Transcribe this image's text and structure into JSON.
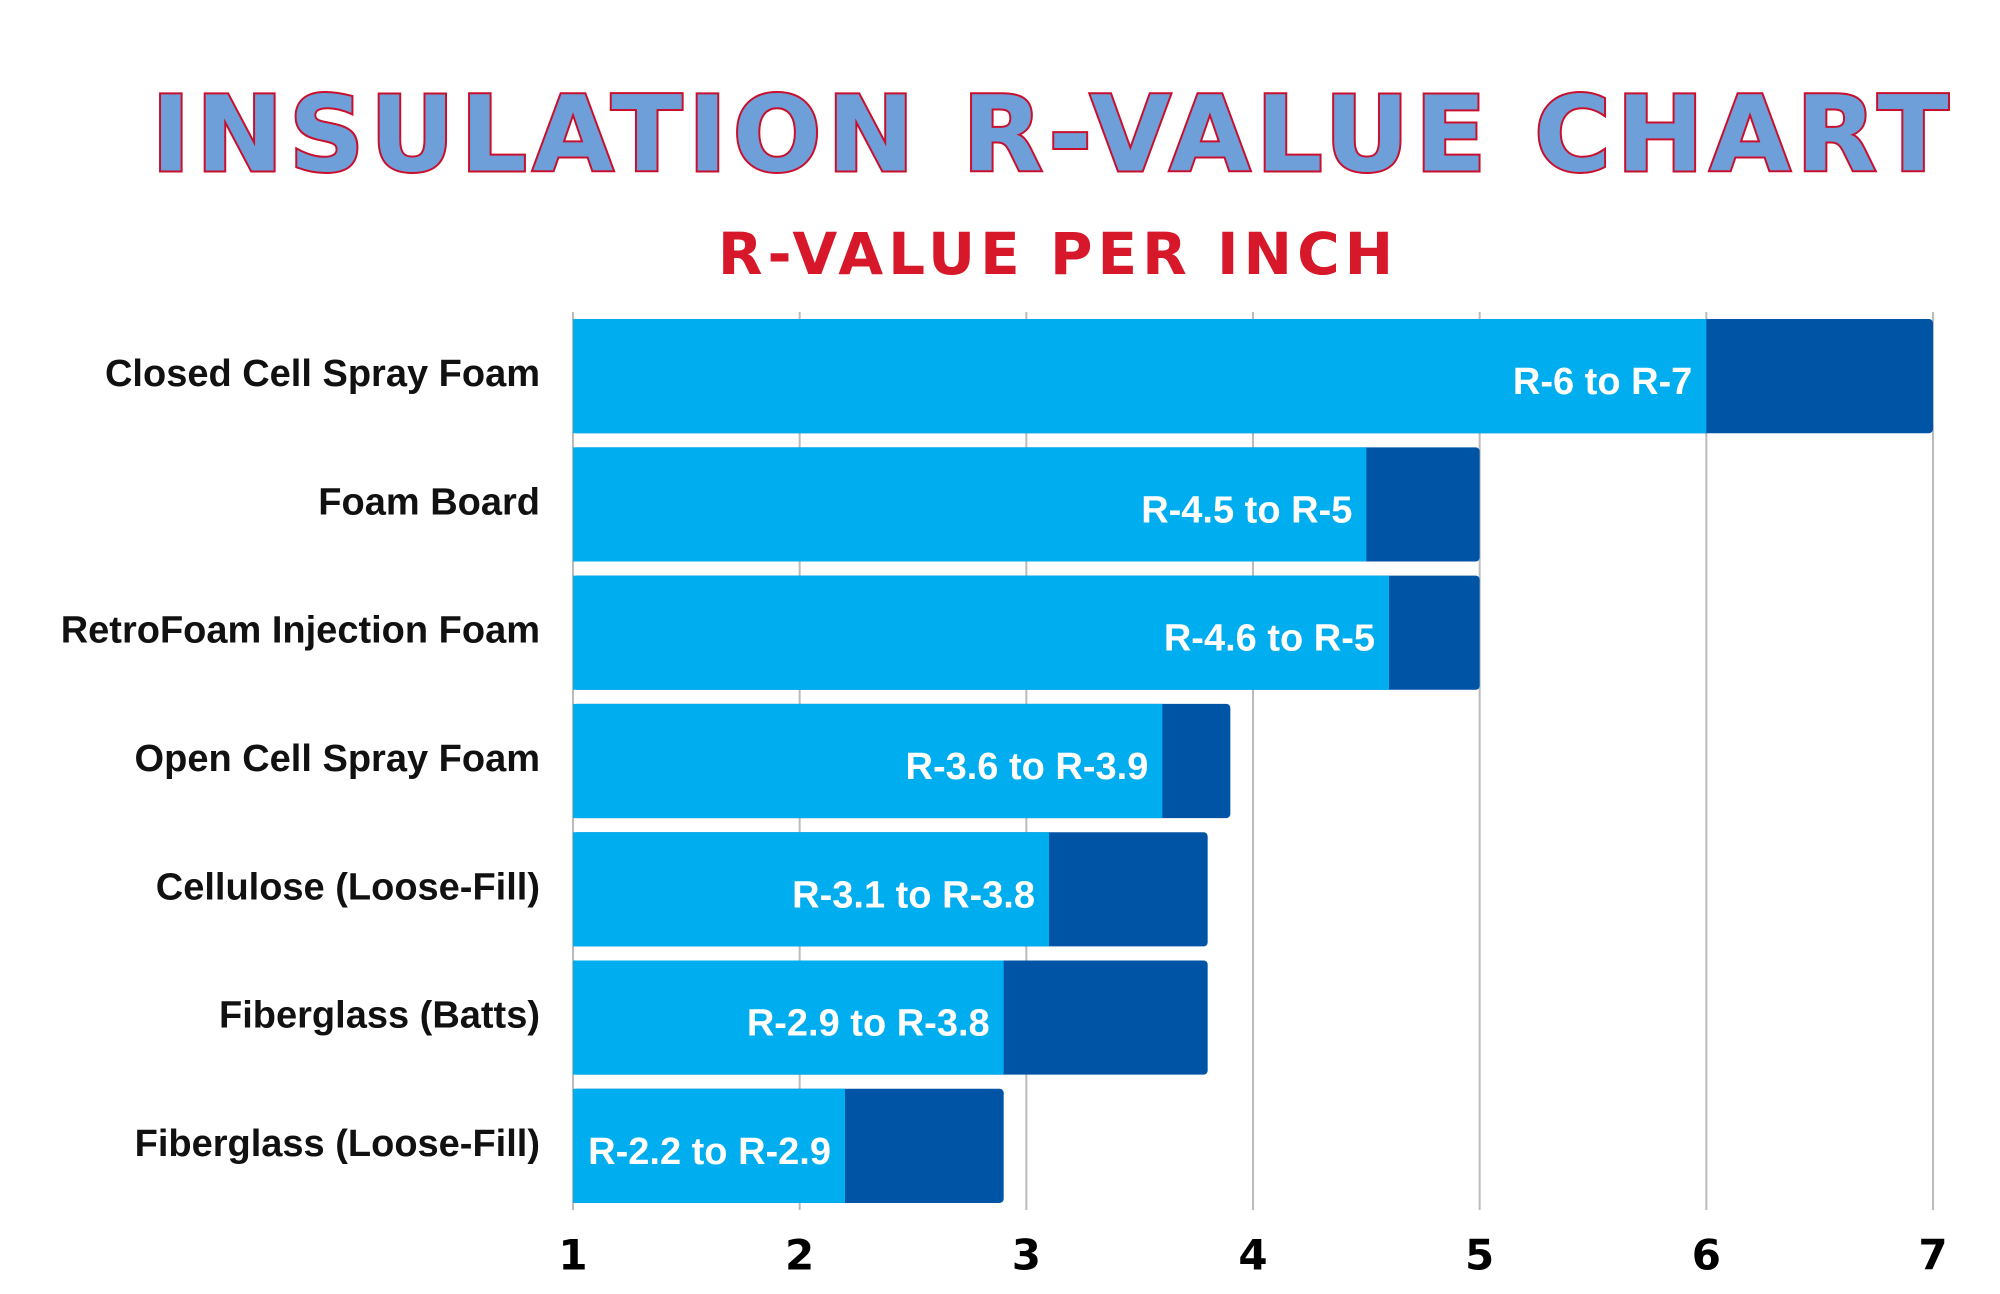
{
  "chart_data": {
    "type": "range-bar",
    "title": "INSULATION R-VALUE CHART",
    "subtitle": "R-VALUE PER INCH",
    "categories": [
      "Closed Cell Spray Foam",
      "Foam Board",
      "RetroFoam Injection Foam",
      "Open Cell Spray Foam",
      "Cellulose (Loose-Fill)",
      "Fiberglass (Batts)",
      "Fiberglass (Loose-Fill)"
    ],
    "low": [
      6,
      4.5,
      4.6,
      3.6,
      3.1,
      2.9,
      2.2
    ],
    "high": [
      7,
      5,
      5,
      3.9,
      3.8,
      3.8,
      2.9
    ],
    "value_labels": [
      "R-6 to R-7",
      "R-4.5 to R-5",
      "R-4.6 to R-5",
      "R-3.6 to R-3.9",
      "R-3.1 to R-3.8",
      "R-2.9 to R-3.8",
      "R-2.2 to R-2.9"
    ],
    "low_color": "#00aeef",
    "high_color": "#0054a6",
    "xlim": [
      1,
      7
    ],
    "xticks": [
      1,
      2,
      3,
      4,
      5,
      6,
      7
    ],
    "grid": true
  }
}
